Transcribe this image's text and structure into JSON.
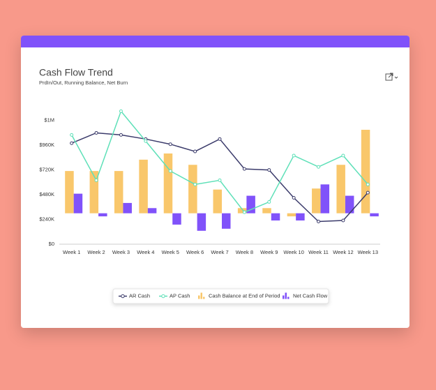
{
  "chart_data": {
    "type": "combo",
    "title": "Cash Flow Trend",
    "subtitle": "PrdIn/Out, Running Balance, Net Burn",
    "categories": [
      "Week 1",
      "Week 2",
      "Week 3",
      "Week 4",
      "Week 5",
      "Week 6",
      "Week 7",
      "Week 8",
      "Week 9",
      "Week 10",
      "Week 11",
      "Week 12",
      "Week 13"
    ],
    "series": [
      {
        "name": "AR Cash",
        "type": "line",
        "color": "#3b3b6b",
        "values": [
          980000,
          1080000,
          1060000,
          1020000,
          970000,
          900000,
          1020000,
          730000,
          720000,
          450000,
          220000,
          230000,
          500000
        ]
      },
      {
        "name": "AP Cash",
        "type": "line",
        "color": "#5ee0b8",
        "values": [
          1060000,
          620000,
          1290000,
          1000000,
          710000,
          580000,
          620000,
          310000,
          410000,
          860000,
          750000,
          860000,
          580000
        ]
      },
      {
        "name": "Cash Balance at End of Period",
        "type": "bar",
        "axis": "y2",
        "color": "#f9c76b",
        "values": [
          410000,
          410000,
          410000,
          520000,
          580000,
          470000,
          230000,
          50000,
          50000,
          -30000,
          240000,
          470000,
          810000
        ]
      },
      {
        "name": "Net Cash Flow",
        "type": "bar",
        "axis": "y2",
        "color": "#8052fa",
        "values": [
          190000,
          -30000,
          100000,
          50000,
          -110000,
          -170000,
          -150000,
          170000,
          -70000,
          -70000,
          280000,
          170000,
          -30000
        ]
      }
    ],
    "ylim": [
      0,
      1320000
    ],
    "yticks": [
      {
        "value": 0,
        "label": "$0"
      },
      {
        "value": 240000,
        "label": "$240K"
      },
      {
        "value": 480000,
        "label": "$480K"
      },
      {
        "value": 720000,
        "label": "$720K"
      },
      {
        "value": 960000,
        "label": "$960K"
      },
      {
        "value": 1200000,
        "label": "$1M"
      }
    ],
    "y2lim": [
      -300000,
      1020000
    ],
    "y2ticks": [],
    "grid": false,
    "legend": "bottom"
  }
}
